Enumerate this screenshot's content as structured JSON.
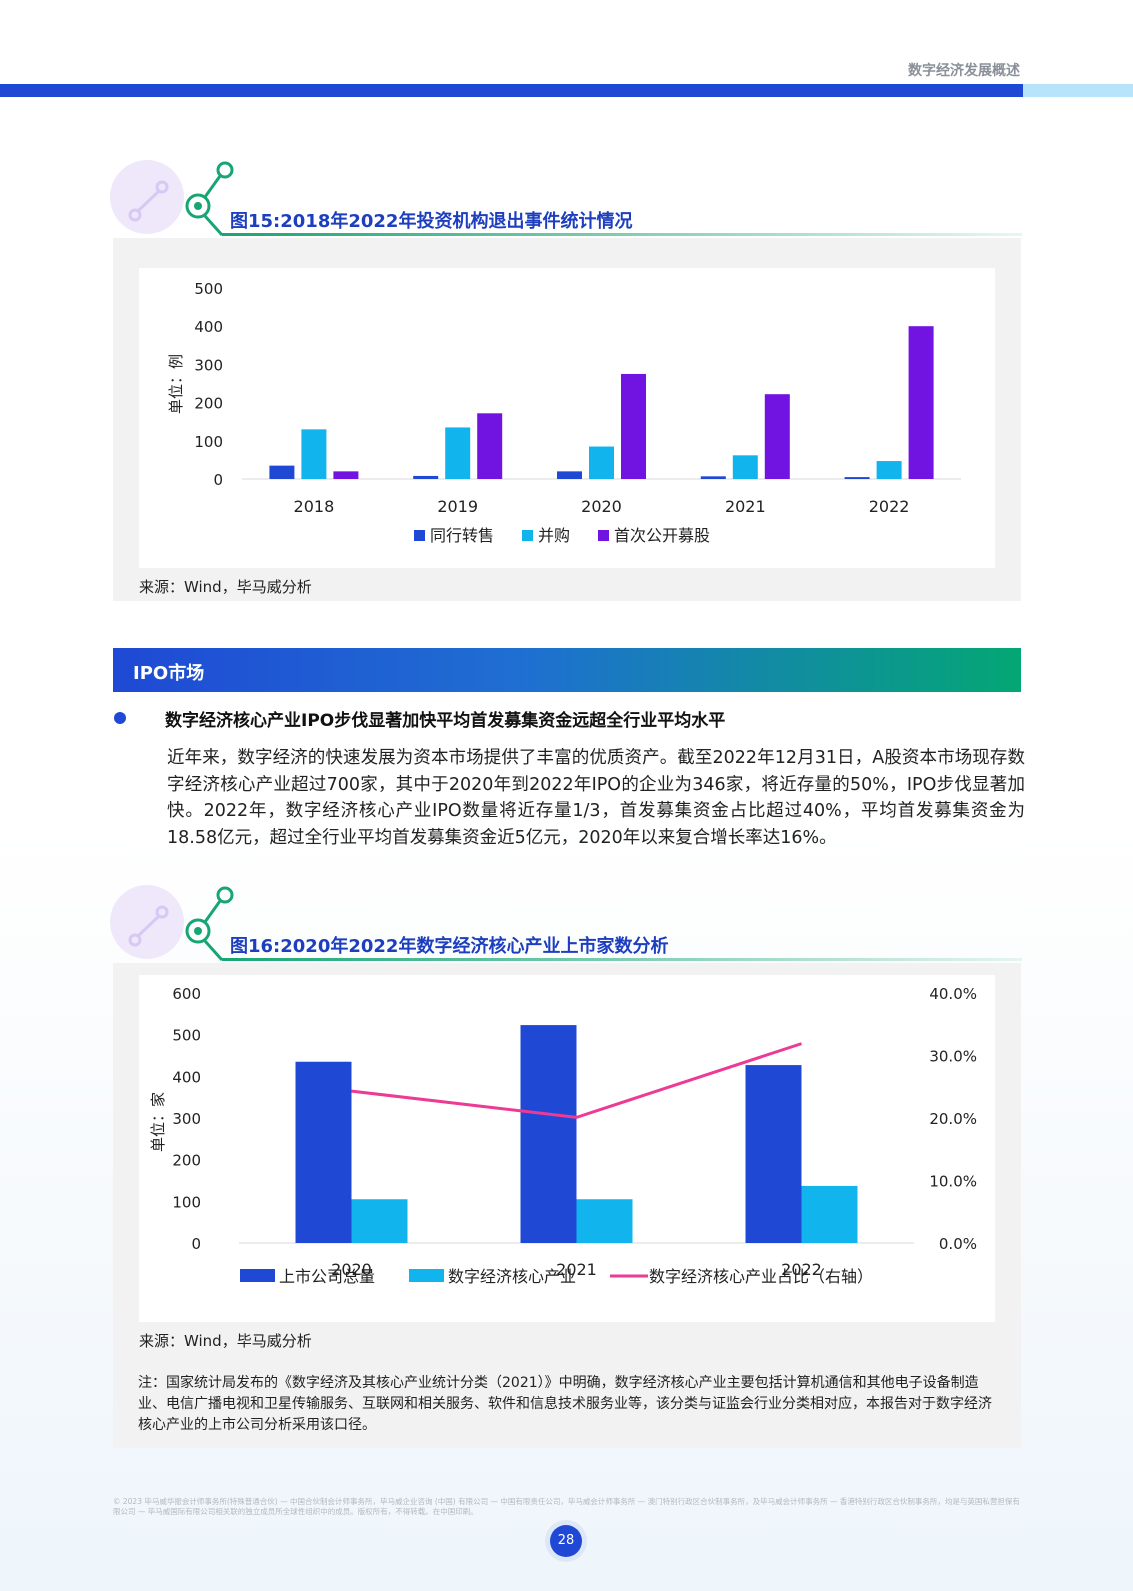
{
  "header": {
    "title": "数字经济发展概述"
  },
  "figure15": {
    "title": "图15:2018年2022年投资机构退出事件统计情况",
    "source": "来源：Wind，毕马威分析"
  },
  "figure16": {
    "title": "图16:2020年2022年数字经济核心产业上市家数分析",
    "source": "来源：Wind，毕马威分析",
    "note": "注：国家统计局发布的《数字经济及其核心产业统计分类（2021）》中明确，数字经济核心产业主要包括计算机通信和其他电子设备制造业、电信广播电视和卫星传输服务、互联网和相关服务、软件和信息技术服务业等，该分类与证监会行业分类相对应，本报告对于数字经济核心产业的上市公司分析采用该口径。"
  },
  "section": {
    "label": "IPO市场"
  },
  "bullet": {
    "title": "数字经济核心产业IPO步伐显著加快平均首发募集资金远超全行业平均水平"
  },
  "paragraph": "近年来，数字经济的快速发展为资本市场提供了丰富的优质资产。截至2022年12月31日，A股资本市场现存数字经济核心产业超过700家，其中于2020年到2022年IPO的企业为346家，将近存量的50%，IPO步伐显著加快。2022年，数字经济核心产业IPO数量将近存量1/3，首发募集资金占比超过40%，平均首发募集资金为18.58亿元，超过全行业平均首发募集资金近5亿元，2020年以来复合增长率达16%。",
  "footer": "© 2023 毕马威华振会计师事务所(特殊普通合伙) — 中国合伙制会计师事务所，毕马威企业咨询 (中国) 有限公司 — 中国有限责任公司，毕马威会计师事务所 — 澳门特别行政区合伙制事务所，及毕马威会计师事务所 — 香港特别行政区合伙制事务所，均是与英国私营担保有限公司 — 毕马威国际有限公司相关联的独立成员所全球性组织中的成员。版权所有，不得转载。在中国印刷。",
  "page_number": "28",
  "colors": {
    "blue": "#1f49d4",
    "cyan": "#12b4ee",
    "purple": "#7114e2",
    "pink": "#ec3a95",
    "green": "#17a673"
  },
  "chart_data": [
    {
      "type": "bar",
      "title": "图15:2018年2022年投资机构退出事件统计情况",
      "categories": [
        "2018",
        "2019",
        "2020",
        "2021",
        "2022"
      ],
      "ylabel": "单位：例",
      "ylim": [
        0,
        500
      ],
      "yticks": [
        "0",
        "100",
        "200",
        "300",
        "400",
        "500"
      ],
      "series": [
        {
          "name": "同行转售",
          "color": "#1f49d4",
          "values": [
            35,
            8,
            20,
            7,
            5
          ]
        },
        {
          "name": "并购",
          "color": "#12b4ee",
          "values": [
            130,
            135,
            85,
            62,
            47
          ]
        },
        {
          "name": "首次公开募股",
          "color": "#7114e2",
          "values": [
            20,
            172,
            275,
            222,
            400
          ]
        }
      ],
      "legend": "bottom",
      "grid": false
    },
    {
      "type": "bar",
      "title": "图16:2020年2022年数字经济核心产业上市家数分析",
      "categories": [
        "2020",
        "2021",
        "2022"
      ],
      "ylabel": "单位：家",
      "ylim": [
        0,
        600
      ],
      "yticks": [
        "0",
        "100",
        "200",
        "300",
        "400",
        "500",
        "600"
      ],
      "y2lim": [
        0,
        40
      ],
      "y2ticks": [
        "0.0%",
        "10.0%",
        "20.0%",
        "30.0%",
        "40.0%"
      ],
      "series": [
        {
          "name": "上市公司总量",
          "type": "bar",
          "color": "#1f49d4",
          "values": [
            435,
            523,
            427
          ]
        },
        {
          "name": "数字经济核心产业",
          "type": "bar",
          "color": "#12b4ee",
          "values": [
            105,
            105,
            137
          ]
        },
        {
          "name": "数字经济核心产业占比（右轴）",
          "type": "line",
          "axis": "right",
          "color": "#ec3a95",
          "values": [
            24.3,
            20.1,
            31.9
          ]
        }
      ],
      "legend": "bottom",
      "grid": false
    }
  ]
}
